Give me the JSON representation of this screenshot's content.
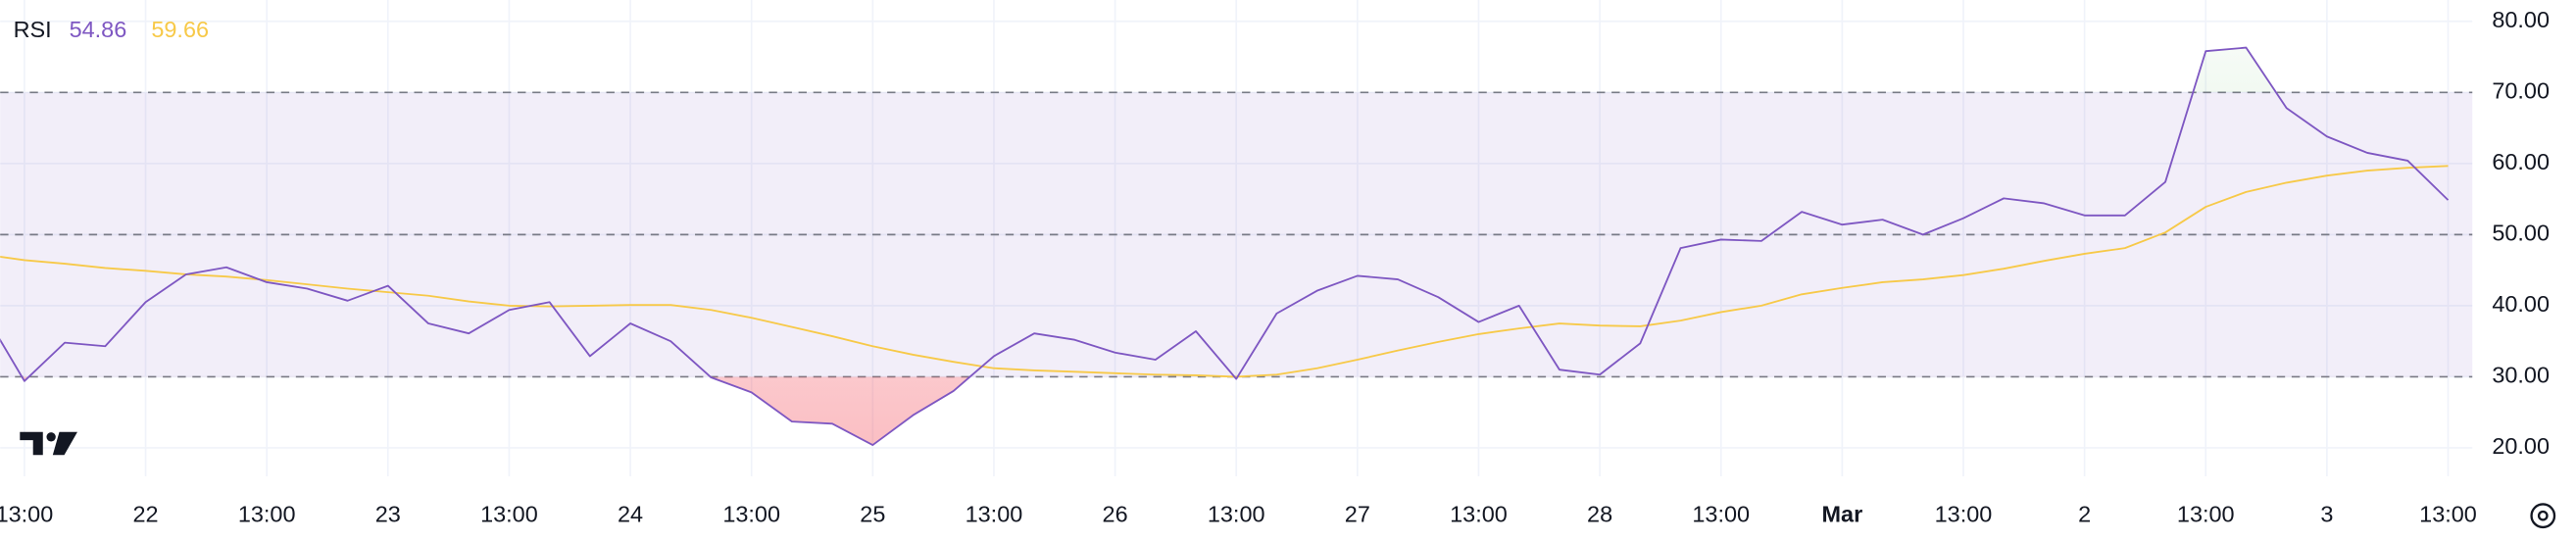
{
  "chart_data": {
    "type": "line",
    "title": "RSI",
    "series": [
      {
        "color": "#7e57c2",
        "values": [
          39,
          29.4,
          34.8,
          34.3,
          40.5,
          44.4,
          45.4,
          43.3,
          42.4,
          40.7,
          42.8,
          37.5,
          36.1,
          39.4,
          40.5,
          32.9,
          37.5,
          35,
          29.9,
          27.8,
          23.7,
          23.4,
          20.4,
          24.6,
          28,
          32.9,
          36.1,
          35.2,
          33.4,
          32.4,
          36.4,
          29.7,
          38.9,
          42.1,
          44.2,
          43.7,
          41.2,
          37.7,
          40,
          31,
          30.3,
          34.7,
          48.1,
          49.3,
          49.1,
          53.2,
          51.4,
          52.1,
          50,
          52.3,
          55.1,
          54.4,
          52.7,
          52.7,
          57.4,
          75.8,
          76.3,
          67.8,
          63.8,
          61.5,
          60.4,
          54.86
        ]
      },
      {
        "color": "#f7c948",
        "values": [
          47.2,
          46.4,
          45.9,
          45.3,
          44.9,
          44.4,
          44.1,
          43.6,
          43,
          42.4,
          41.9,
          41.4,
          40.6,
          40,
          39.9,
          40,
          40.1,
          40.1,
          39.4,
          38.3,
          37,
          35.7,
          34.3,
          33.1,
          32.1,
          31.2,
          30.9,
          30.7,
          30.5,
          30.3,
          30.2,
          30,
          30.3,
          31.2,
          32.4,
          33.7,
          34.9,
          36,
          36.8,
          37.5,
          37.2,
          37.1,
          37.9,
          39.1,
          40,
          41.6,
          42.5,
          43.3,
          43.7,
          44.3,
          45.2,
          46.3,
          47.3,
          48.1,
          50.3,
          53.9,
          56,
          57.3,
          58.3,
          59,
          59.4,
          59.66
        ]
      }
    ],
    "bands": [
      70,
      50,
      30
    ],
    "xlim": [
      0.4,
      61.6
    ],
    "xticks": [
      {
        "value": 1,
        "label": "13:00"
      },
      {
        "value": 4,
        "label": "22"
      },
      {
        "value": 7,
        "label": "13:00"
      },
      {
        "value": 10,
        "label": "23"
      },
      {
        "value": 13,
        "label": "13:00"
      },
      {
        "value": 16,
        "label": "24"
      },
      {
        "value": 19,
        "label": "13:00"
      },
      {
        "value": 22,
        "label": "25"
      },
      {
        "value": 25,
        "label": "13:00"
      },
      {
        "value": 28,
        "label": "26"
      },
      {
        "value": 31,
        "label": "13:00"
      },
      {
        "value": 34,
        "label": "27"
      },
      {
        "value": 37,
        "label": "13:00"
      },
      {
        "value": 40,
        "label": "28"
      },
      {
        "value": 43,
        "label": "13:00"
      },
      {
        "value": 46,
        "label": "Mar",
        "bold": true
      },
      {
        "value": 49,
        "label": "13:00"
      },
      {
        "value": 52,
        "label": "2"
      },
      {
        "value": 55,
        "label": "13:00"
      },
      {
        "value": 58,
        "label": "3"
      },
      {
        "value": 61,
        "label": "13:00"
      }
    ],
    "ylim": [
      16,
      83
    ],
    "yticks": [
      {
        "value": 80,
        "label": "80.00"
      },
      {
        "value": 70,
        "label": "70.00"
      },
      {
        "value": 60,
        "label": "60.00"
      },
      {
        "value": 50,
        "label": "50.00"
      },
      {
        "value": 40,
        "label": "40.00"
      },
      {
        "value": 30,
        "label": "30.00"
      },
      {
        "value": 20,
        "label": "20.00"
      }
    ],
    "grid": true
  }
}
